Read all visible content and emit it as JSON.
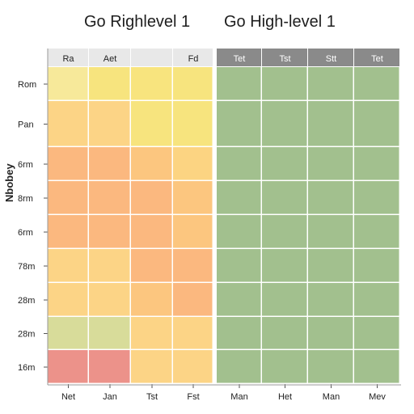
{
  "chart_data": {
    "type": "heatmap",
    "titles": [
      "Go Righlevel 1",
      "Go High-level 1"
    ],
    "ylabel": "Nbobey",
    "rows": [
      "Rom",
      "Pan",
      "6rm",
      "8rm",
      "6rm",
      "78m",
      "28m",
      "28m",
      "16m"
    ],
    "left_panel": {
      "header_labels": [
        "Ra",
        "Aet",
        "",
        "Fd"
      ],
      "x_labels": [
        "Net",
        "Jan",
        "Tst",
        "Fst"
      ],
      "colors": [
        [
          "#f7e99a",
          "#f7e47e",
          "#f8e47e",
          "#f7e47e"
        ],
        [
          "#fcd486",
          "#fcd486",
          "#f7e47e",
          "#f7e47e"
        ],
        [
          "#fbb87f",
          "#fbb87f",
          "#fcc67f",
          "#fcd482"
        ],
        [
          "#fbb87f",
          "#fbb87f",
          "#fbb87f",
          "#fcc67f"
        ],
        [
          "#fbb87f",
          "#fbb87f",
          "#fbb87f",
          "#fcc67f"
        ],
        [
          "#fcd486",
          "#fcd486",
          "#fbb87f",
          "#fbb87f"
        ],
        [
          "#fcd486",
          "#fcd486",
          "#fcc67f",
          "#fbb87f"
        ],
        [
          "#d8dc9a",
          "#d8dc9a",
          "#fcd486",
          "#fcd486"
        ],
        [
          "#ec928a",
          "#ec928a",
          "#fcd486",
          "#fcd486"
        ]
      ]
    },
    "right_panel": {
      "header_labels": [
        "Tet",
        "Tst",
        "Stt",
        "Tet"
      ],
      "x_labels": [
        "Man",
        "Het",
        "Man",
        "Mev"
      ],
      "color": "#a2c08e"
    }
  }
}
